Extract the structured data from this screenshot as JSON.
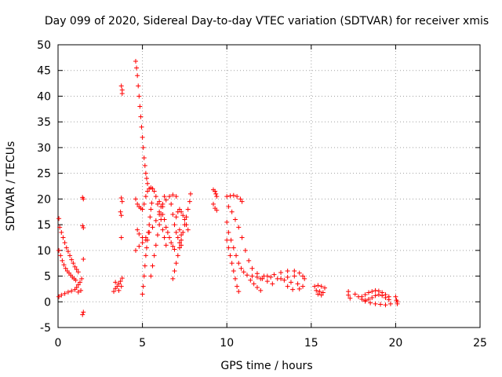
{
  "chart_data": {
    "type": "scatter",
    "title": "Day 099 of 2020, Sidereal Day-to-day VTEC variation (SDTVAR) for receiver xmis",
    "xlabel": "GPS time / hours",
    "ylabel": "SDTVAR / TECUs",
    "xlim": [
      0,
      25
    ],
    "ylim": [
      -5,
      50
    ],
    "grid": true,
    "marker": "+",
    "color": "#ff0000",
    "x_ticks": [
      "0",
      "5",
      "10",
      "15",
      "20",
      "25"
    ],
    "y_ticks": [
      "-5",
      "0",
      "5",
      "10",
      "15",
      "20",
      "25",
      "30",
      "35",
      "40",
      "45",
      "50"
    ],
    "series": [
      {
        "name": "SDTVAR",
        "points": [
          [
            0.05,
            16.2
          ],
          [
            0.1,
            14.5
          ],
          [
            0.2,
            13.5
          ],
          [
            0.3,
            12.5
          ],
          [
            0.4,
            11.5
          ],
          [
            0.5,
            10.5
          ],
          [
            0.6,
            9.8
          ],
          [
            0.7,
            9.0
          ],
          [
            0.8,
            8.2
          ],
          [
            0.9,
            7.5
          ],
          [
            1.0,
            6.8
          ],
          [
            1.1,
            6.3
          ],
          [
            1.2,
            5.8
          ],
          [
            0.05,
            10.0
          ],
          [
            0.15,
            9.0
          ],
          [
            0.25,
            8.0
          ],
          [
            0.35,
            7.2
          ],
          [
            0.45,
            6.5
          ],
          [
            0.55,
            6.0
          ],
          [
            0.65,
            5.6
          ],
          [
            0.75,
            5.2
          ],
          [
            0.85,
            4.8
          ],
          [
            0.95,
            4.5
          ],
          [
            1.05,
            4.2
          ],
          [
            0.05,
            1.0
          ],
          [
            0.2,
            1.3
          ],
          [
            0.4,
            1.6
          ],
          [
            0.6,
            1.9
          ],
          [
            0.8,
            2.1
          ],
          [
            1.0,
            2.4
          ],
          [
            1.1,
            2.8
          ],
          [
            1.2,
            3.3
          ],
          [
            1.3,
            3.8
          ],
          [
            1.35,
            2.2
          ],
          [
            1.2,
            1.9
          ],
          [
            1.4,
            4.5
          ],
          [
            1.45,
            20.3
          ],
          [
            1.5,
            20.0
          ],
          [
            1.45,
            14.8
          ],
          [
            1.5,
            14.4
          ],
          [
            1.5,
            8.3
          ],
          [
            1.5,
            -2.0
          ],
          [
            1.45,
            -2.5
          ],
          [
            3.3,
            2.0
          ],
          [
            3.4,
            2.6
          ],
          [
            3.5,
            3.0
          ],
          [
            3.6,
            3.5
          ],
          [
            3.7,
            4.0
          ],
          [
            3.8,
            4.6
          ],
          [
            3.4,
            3.8
          ],
          [
            3.6,
            2.2
          ],
          [
            3.75,
            3.0
          ],
          [
            3.75,
            20.2
          ],
          [
            3.8,
            19.5
          ],
          [
            3.7,
            17.5
          ],
          [
            3.75,
            16.8
          ],
          [
            3.75,
            12.5
          ],
          [
            3.75,
            42.0
          ],
          [
            3.8,
            41.2
          ],
          [
            3.8,
            40.5
          ],
          [
            4.6,
            46.8
          ],
          [
            4.65,
            45.5
          ],
          [
            4.7,
            44.0
          ],
          [
            4.75,
            42.0
          ],
          [
            4.8,
            40.0
          ],
          [
            4.85,
            38.0
          ],
          [
            4.9,
            36.0
          ],
          [
            4.95,
            34.0
          ],
          [
            5.0,
            32.0
          ],
          [
            5.05,
            30.0
          ],
          [
            5.1,
            28.0
          ],
          [
            5.15,
            26.5
          ],
          [
            5.2,
            25.0
          ],
          [
            5.25,
            24.0
          ],
          [
            5.3,
            23.0
          ],
          [
            4.6,
            20.0
          ],
          [
            4.7,
            19.0
          ],
          [
            4.8,
            18.5
          ],
          [
            4.9,
            18.2
          ],
          [
            5.0,
            18.0
          ],
          [
            5.1,
            19.0
          ],
          [
            5.2,
            20.5
          ],
          [
            5.3,
            21.5
          ],
          [
            5.4,
            22.0
          ],
          [
            5.5,
            22.2
          ],
          [
            5.6,
            22.0
          ],
          [
            5.7,
            21.5
          ],
          [
            5.8,
            20.5
          ],
          [
            5.9,
            19.0
          ],
          [
            6.0,
            17.5
          ],
          [
            6.1,
            16.0
          ],
          [
            6.2,
            14.0
          ],
          [
            6.3,
            12.5
          ],
          [
            6.4,
            11.0
          ],
          [
            4.7,
            14.0
          ],
          [
            4.8,
            13.2
          ],
          [
            5.0,
            12.5
          ],
          [
            5.2,
            12.0
          ],
          [
            5.0,
            1.5
          ],
          [
            5.05,
            3.0
          ],
          [
            5.1,
            5.0
          ],
          [
            5.15,
            7.0
          ],
          [
            5.2,
            9.0
          ],
          [
            5.25,
            10.5
          ],
          [
            5.3,
            12.0
          ],
          [
            5.35,
            13.5
          ],
          [
            5.4,
            15.0
          ],
          [
            5.45,
            16.5
          ],
          [
            5.5,
            18.0
          ],
          [
            5.55,
            19.2
          ],
          [
            4.6,
            10.0
          ],
          [
            4.8,
            10.8
          ],
          [
            5.0,
            11.5
          ],
          [
            5.2,
            12.5
          ],
          [
            5.4,
            13.5
          ],
          [
            5.6,
            14.5
          ],
          [
            5.8,
            15.8
          ],
          [
            6.0,
            17.0
          ],
          [
            6.2,
            18.5
          ],
          [
            6.4,
            19.8
          ],
          [
            6.6,
            20.5
          ],
          [
            6.8,
            20.8
          ],
          [
            7.0,
            20.5
          ],
          [
            5.5,
            5.0
          ],
          [
            5.6,
            7.0
          ],
          [
            5.7,
            9.0
          ],
          [
            5.8,
            11.0
          ],
          [
            5.9,
            13.0
          ],
          [
            6.0,
            15.0
          ],
          [
            6.1,
            17.0
          ],
          [
            6.2,
            19.0
          ],
          [
            6.3,
            20.5
          ],
          [
            6.0,
            19.5
          ],
          [
            6.1,
            18.5
          ],
          [
            6.2,
            17.0
          ],
          [
            6.3,
            16.0
          ],
          [
            6.4,
            14.5
          ],
          [
            6.5,
            13.5
          ],
          [
            6.6,
            12.5
          ],
          [
            6.7,
            11.5
          ],
          [
            6.8,
            10.8
          ],
          [
            6.9,
            10.2
          ],
          [
            6.7,
            19.0
          ],
          [
            6.8,
            17.0
          ],
          [
            6.9,
            15.0
          ],
          [
            7.0,
            13.5
          ],
          [
            7.1,
            12.5
          ],
          [
            7.2,
            11.5
          ],
          [
            7.3,
            11.0
          ],
          [
            6.8,
            4.5
          ],
          [
            6.9,
            6.0
          ],
          [
            7.0,
            7.5
          ],
          [
            7.1,
            9.0
          ],
          [
            7.2,
            10.5
          ],
          [
            7.3,
            12.0
          ],
          [
            7.4,
            13.5
          ],
          [
            7.5,
            15.0
          ],
          [
            7.6,
            16.5
          ],
          [
            7.7,
            18.0
          ],
          [
            7.8,
            19.5
          ],
          [
            7.85,
            21.0
          ],
          [
            7.0,
            16.5
          ],
          [
            7.1,
            17.5
          ],
          [
            7.2,
            18.0
          ],
          [
            7.3,
            17.5
          ],
          [
            7.4,
            16.8
          ],
          [
            7.5,
            16.0
          ],
          [
            7.6,
            15.0
          ],
          [
            7.7,
            14.0
          ],
          [
            7.2,
            14.0
          ],
          [
            7.3,
            13.0
          ],
          [
            9.2,
            21.8
          ],
          [
            9.3,
            21.5
          ],
          [
            9.35,
            21.0
          ],
          [
            9.4,
            20.5
          ],
          [
            9.2,
            19.0
          ],
          [
            9.3,
            18.2
          ],
          [
            9.4,
            17.8
          ],
          [
            10.0,
            20.5
          ],
          [
            10.2,
            20.6
          ],
          [
            10.4,
            20.7
          ],
          [
            10.6,
            20.5
          ],
          [
            10.8,
            20.0
          ],
          [
            10.9,
            19.5
          ],
          [
            10.1,
            18.5
          ],
          [
            10.3,
            17.5
          ],
          [
            10.5,
            16.0
          ],
          [
            10.7,
            14.5
          ],
          [
            10.9,
            12.5
          ],
          [
            11.1,
            10.0
          ],
          [
            11.3,
            8.0
          ],
          [
            11.5,
            6.5
          ],
          [
            11.8,
            5.5
          ],
          [
            12.2,
            5.0
          ],
          [
            12.6,
            4.8
          ],
          [
            13.0,
            4.5
          ],
          [
            13.4,
            4.2
          ],
          [
            13.8,
            3.8
          ],
          [
            14.2,
            3.5
          ],
          [
            14.5,
            3.0
          ],
          [
            10.0,
            15.5
          ],
          [
            10.1,
            13.5
          ],
          [
            10.25,
            12.0
          ],
          [
            10.4,
            10.5
          ],
          [
            10.55,
            9.0
          ],
          [
            10.7,
            7.5
          ],
          [
            10.85,
            6.5
          ],
          [
            11.0,
            5.8
          ],
          [
            11.2,
            5.2
          ],
          [
            11.5,
            5.0
          ],
          [
            11.8,
            4.8
          ],
          [
            12.1,
            4.5
          ],
          [
            12.4,
            4.0
          ],
          [
            12.7,
            3.5
          ],
          [
            10.0,
            12.0
          ],
          [
            10.1,
            10.5
          ],
          [
            10.2,
            9.0
          ],
          [
            10.3,
            7.5
          ],
          [
            10.4,
            6.0
          ],
          [
            10.5,
            4.5
          ],
          [
            10.6,
            3.0
          ],
          [
            10.7,
            2.0
          ],
          [
            11.4,
            4.2
          ],
          [
            11.6,
            3.5
          ],
          [
            11.8,
            2.8
          ],
          [
            12.0,
            2.2
          ],
          [
            12.0,
            4.5
          ],
          [
            12.4,
            5.0
          ],
          [
            12.8,
            5.3
          ],
          [
            13.2,
            5.7
          ],
          [
            13.6,
            6.0
          ],
          [
            14.0,
            6.0
          ],
          [
            14.3,
            5.6
          ],
          [
            14.5,
            5.0
          ],
          [
            14.6,
            4.5
          ],
          [
            14.0,
            5.0
          ],
          [
            13.6,
            4.8
          ],
          [
            13.2,
            4.5
          ],
          [
            13.6,
            3.0
          ],
          [
            13.9,
            2.4
          ],
          [
            14.3,
            2.5
          ],
          [
            15.2,
            3.0
          ],
          [
            15.4,
            3.2
          ],
          [
            15.6,
            3.0
          ],
          [
            15.8,
            2.7
          ],
          [
            15.3,
            2.2
          ],
          [
            15.5,
            2.0
          ],
          [
            15.7,
            1.8
          ],
          [
            15.4,
            1.5
          ],
          [
            15.6,
            1.3
          ],
          [
            17.2,
            2.0
          ],
          [
            17.2,
            1.3
          ],
          [
            17.3,
            0.7
          ],
          [
            17.6,
            1.5
          ],
          [
            17.8,
            1.0
          ],
          [
            18.0,
            0.5
          ],
          [
            18.2,
            0.3
          ],
          [
            18.4,
            0.5
          ],
          [
            18.6,
            0.8
          ],
          [
            18.8,
            1.2
          ],
          [
            19.0,
            1.4
          ],
          [
            19.2,
            1.2
          ],
          [
            19.4,
            0.8
          ],
          [
            19.6,
            0.4
          ],
          [
            18.0,
            1.0
          ],
          [
            18.2,
            1.4
          ],
          [
            18.4,
            1.8
          ],
          [
            18.6,
            2.0
          ],
          [
            18.8,
            2.2
          ],
          [
            19.0,
            2.1
          ],
          [
            19.2,
            1.8
          ],
          [
            19.4,
            1.4
          ],
          [
            19.6,
            1.0
          ],
          [
            18.2,
            0.1
          ],
          [
            18.5,
            -0.2
          ],
          [
            18.8,
            -0.4
          ],
          [
            19.1,
            -0.5
          ],
          [
            19.4,
            -0.6
          ],
          [
            19.7,
            -0.4
          ],
          [
            20.0,
            1.0
          ],
          [
            20.05,
            0.3
          ],
          [
            20.1,
            -0.4
          ],
          [
            20.1,
            0.0
          ]
        ]
      }
    ]
  }
}
